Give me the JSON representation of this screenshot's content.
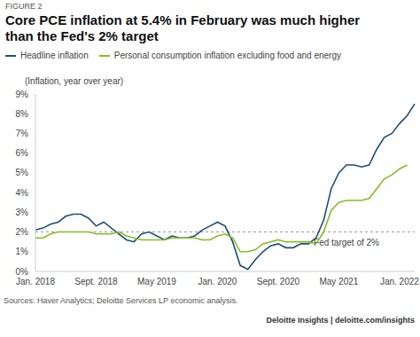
{
  "chart_data": {
    "type": "line",
    "figure_label": "FIGURE 2",
    "title": "Core PCE inflation at 5.4% in February was much higher than the Fed's 2% target",
    "y_axis_label": "(Inflation, year over year)",
    "categories": [
      "Jan. 2018",
      null,
      null,
      null,
      null,
      null,
      null,
      null,
      "Sept. 2018",
      null,
      null,
      null,
      null,
      null,
      null,
      null,
      "May 2019",
      null,
      null,
      null,
      null,
      null,
      null,
      null,
      "Jan. 2020",
      null,
      null,
      null,
      null,
      null,
      null,
      null,
      "Sept. 2020",
      null,
      null,
      null,
      null,
      null,
      null,
      null,
      "May 2021",
      null,
      null,
      null,
      null,
      null,
      null,
      null,
      "Jan. 2022",
      null,
      null
    ],
    "series": [
      {
        "name": "Headline inflation",
        "color": "#1f4e79",
        "values": [
          2.1,
          2.2,
          2.4,
          2.5,
          2.8,
          2.9,
          2.9,
          2.7,
          2.3,
          2.5,
          2.2,
          1.9,
          1.6,
          1.5,
          1.9,
          2.0,
          1.8,
          1.6,
          1.8,
          1.7,
          1.7,
          1.8,
          2.1,
          2.3,
          2.5,
          2.3,
          1.5,
          0.3,
          0.1,
          0.6,
          1.0,
          1.3,
          1.4,
          1.2,
          1.2,
          1.4,
          1.4,
          1.7,
          2.6,
          4.2,
          5.0,
          5.4,
          5.4,
          5.3,
          5.4,
          6.2,
          6.8,
          7.0,
          7.5,
          7.9,
          8.5
        ]
      },
      {
        "name": "Personal consumption inflation excluding food and energy",
        "color": "#86bc25",
        "values": [
          1.7,
          1.7,
          1.9,
          2.0,
          2.0,
          2.0,
          2.0,
          2.0,
          1.9,
          1.9,
          1.9,
          2.0,
          1.8,
          1.7,
          1.6,
          1.6,
          1.6,
          1.6,
          1.7,
          1.7,
          1.7,
          1.7,
          1.6,
          1.6,
          1.8,
          1.9,
          1.7,
          1.0,
          1.0,
          1.1,
          1.4,
          1.5,
          1.6,
          1.5,
          1.5,
          1.5,
          1.5,
          1.4,
          2.0,
          3.1,
          3.5,
          3.6,
          3.6,
          3.6,
          3.7,
          4.2,
          4.7,
          4.9,
          5.2,
          5.4,
          null
        ]
      }
    ],
    "ylim": [
      0,
      9
    ],
    "yticks": [
      {
        "value": 0,
        "label": "0%"
      },
      {
        "value": 1,
        "label": "1%"
      },
      {
        "value": 2,
        "label": "2%"
      },
      {
        "value": 3,
        "label": "3%"
      },
      {
        "value": 4,
        "label": "4%"
      },
      {
        "value": 5,
        "label": "5%"
      },
      {
        "value": 6,
        "label": "6%"
      },
      {
        "value": 7,
        "label": "7%"
      },
      {
        "value": 8,
        "label": "8%"
      },
      {
        "value": 9,
        "label": "9%"
      }
    ],
    "reference_line": {
      "value": 2,
      "label": "Fed target of 2%"
    },
    "grid": false,
    "legend": "top-left",
    "source": "Sources: Haver Analytics; Deloitte Services LP economic analysis.",
    "credit": "Deloitte Insights | deloitte.com/insights"
  }
}
